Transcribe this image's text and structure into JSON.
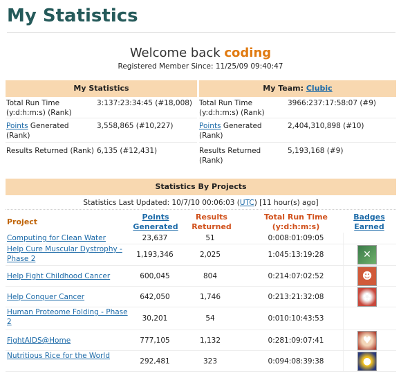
{
  "page": {
    "title": "My Statistics",
    "welcome_prefix": "Welcome back",
    "username": "coding",
    "member_since": "Registered Member Since: 11/25/09 09:40:47"
  },
  "my_stats": {
    "header": "My Statistics",
    "rows": [
      {
        "label": "Total Run Time (y:d:h:m:s) (Rank)",
        "value": "3:137:23:34:45 (#18,008)"
      },
      {
        "label_link": "Points",
        "label_rest": " Generated (Rank)",
        "value": "3,558,865 (#10,227)"
      },
      {
        "label": "Results Returned (Rank)",
        "value": "6,135 (#12,431)"
      }
    ]
  },
  "my_team": {
    "header_prefix": "My Team:",
    "team_name": "Clubic",
    "rows": [
      {
        "label": "Total Run Time (y:d:h:m:s) (Rank)",
        "value": "3966:237:17:58:07 (#9)"
      },
      {
        "label_link": "Points",
        "label_rest": " Generated (Rank)",
        "value": "2,404,310,898 (#10)"
      },
      {
        "label": "Results Returned (Rank)",
        "value": "5,193,168 (#9)"
      }
    ]
  },
  "projects": {
    "header": "Statistics By Projects",
    "updated_prefix": "Statistics Last Updated: 10/7/10 00:06:03 (",
    "updated_tz": "UTC",
    "updated_suffix": ") [11 hour(s) ago]",
    "col_project": "Project",
    "col_points": "Points Generated",
    "col_results": "Results Returned",
    "col_time": "Total Run Time (y:d:h:m:s)",
    "col_badges": "Badges Earned",
    "colors": {
      "header_bg": "#f8d8b0",
      "project_col": "#c0650a",
      "time_col": "#d0501b"
    },
    "rows": [
      {
        "name": "Computing for Clean Water",
        "points": "23,637",
        "results": "51",
        "time": "0:008:01:09:05",
        "badge": null
      },
      {
        "name": "Help Cure Muscular Dystrophy - Phase 2",
        "points": "1,193,346",
        "results": "2,025",
        "time": "1:045:13:19:28",
        "badge": "dna-badge-icon"
      },
      {
        "name": "Help Fight Childhood Cancer",
        "points": "600,045",
        "results": "804",
        "time": "0:214:07:02:52",
        "badge": "child-badge-icon"
      },
      {
        "name": "Help Conquer Cancer",
        "points": "642,050",
        "results": "1,746",
        "time": "0:213:21:32:08",
        "badge": "cells-badge-icon"
      },
      {
        "name": "Human Proteome Folding - Phase 2",
        "points": "30,201",
        "results": "54",
        "time": "0:010:10:43:53",
        "badge": null
      },
      {
        "name": "FightAIDS@Home",
        "points": "777,105",
        "results": "1,132",
        "time": "0:281:09:07:41",
        "badge": "ribbon-badge-icon"
      },
      {
        "name": "Nutritious Rice for the World",
        "points": "292,481",
        "results": "323",
        "time": "0:094:08:39:38",
        "badge": "rice-badge-icon"
      }
    ]
  }
}
